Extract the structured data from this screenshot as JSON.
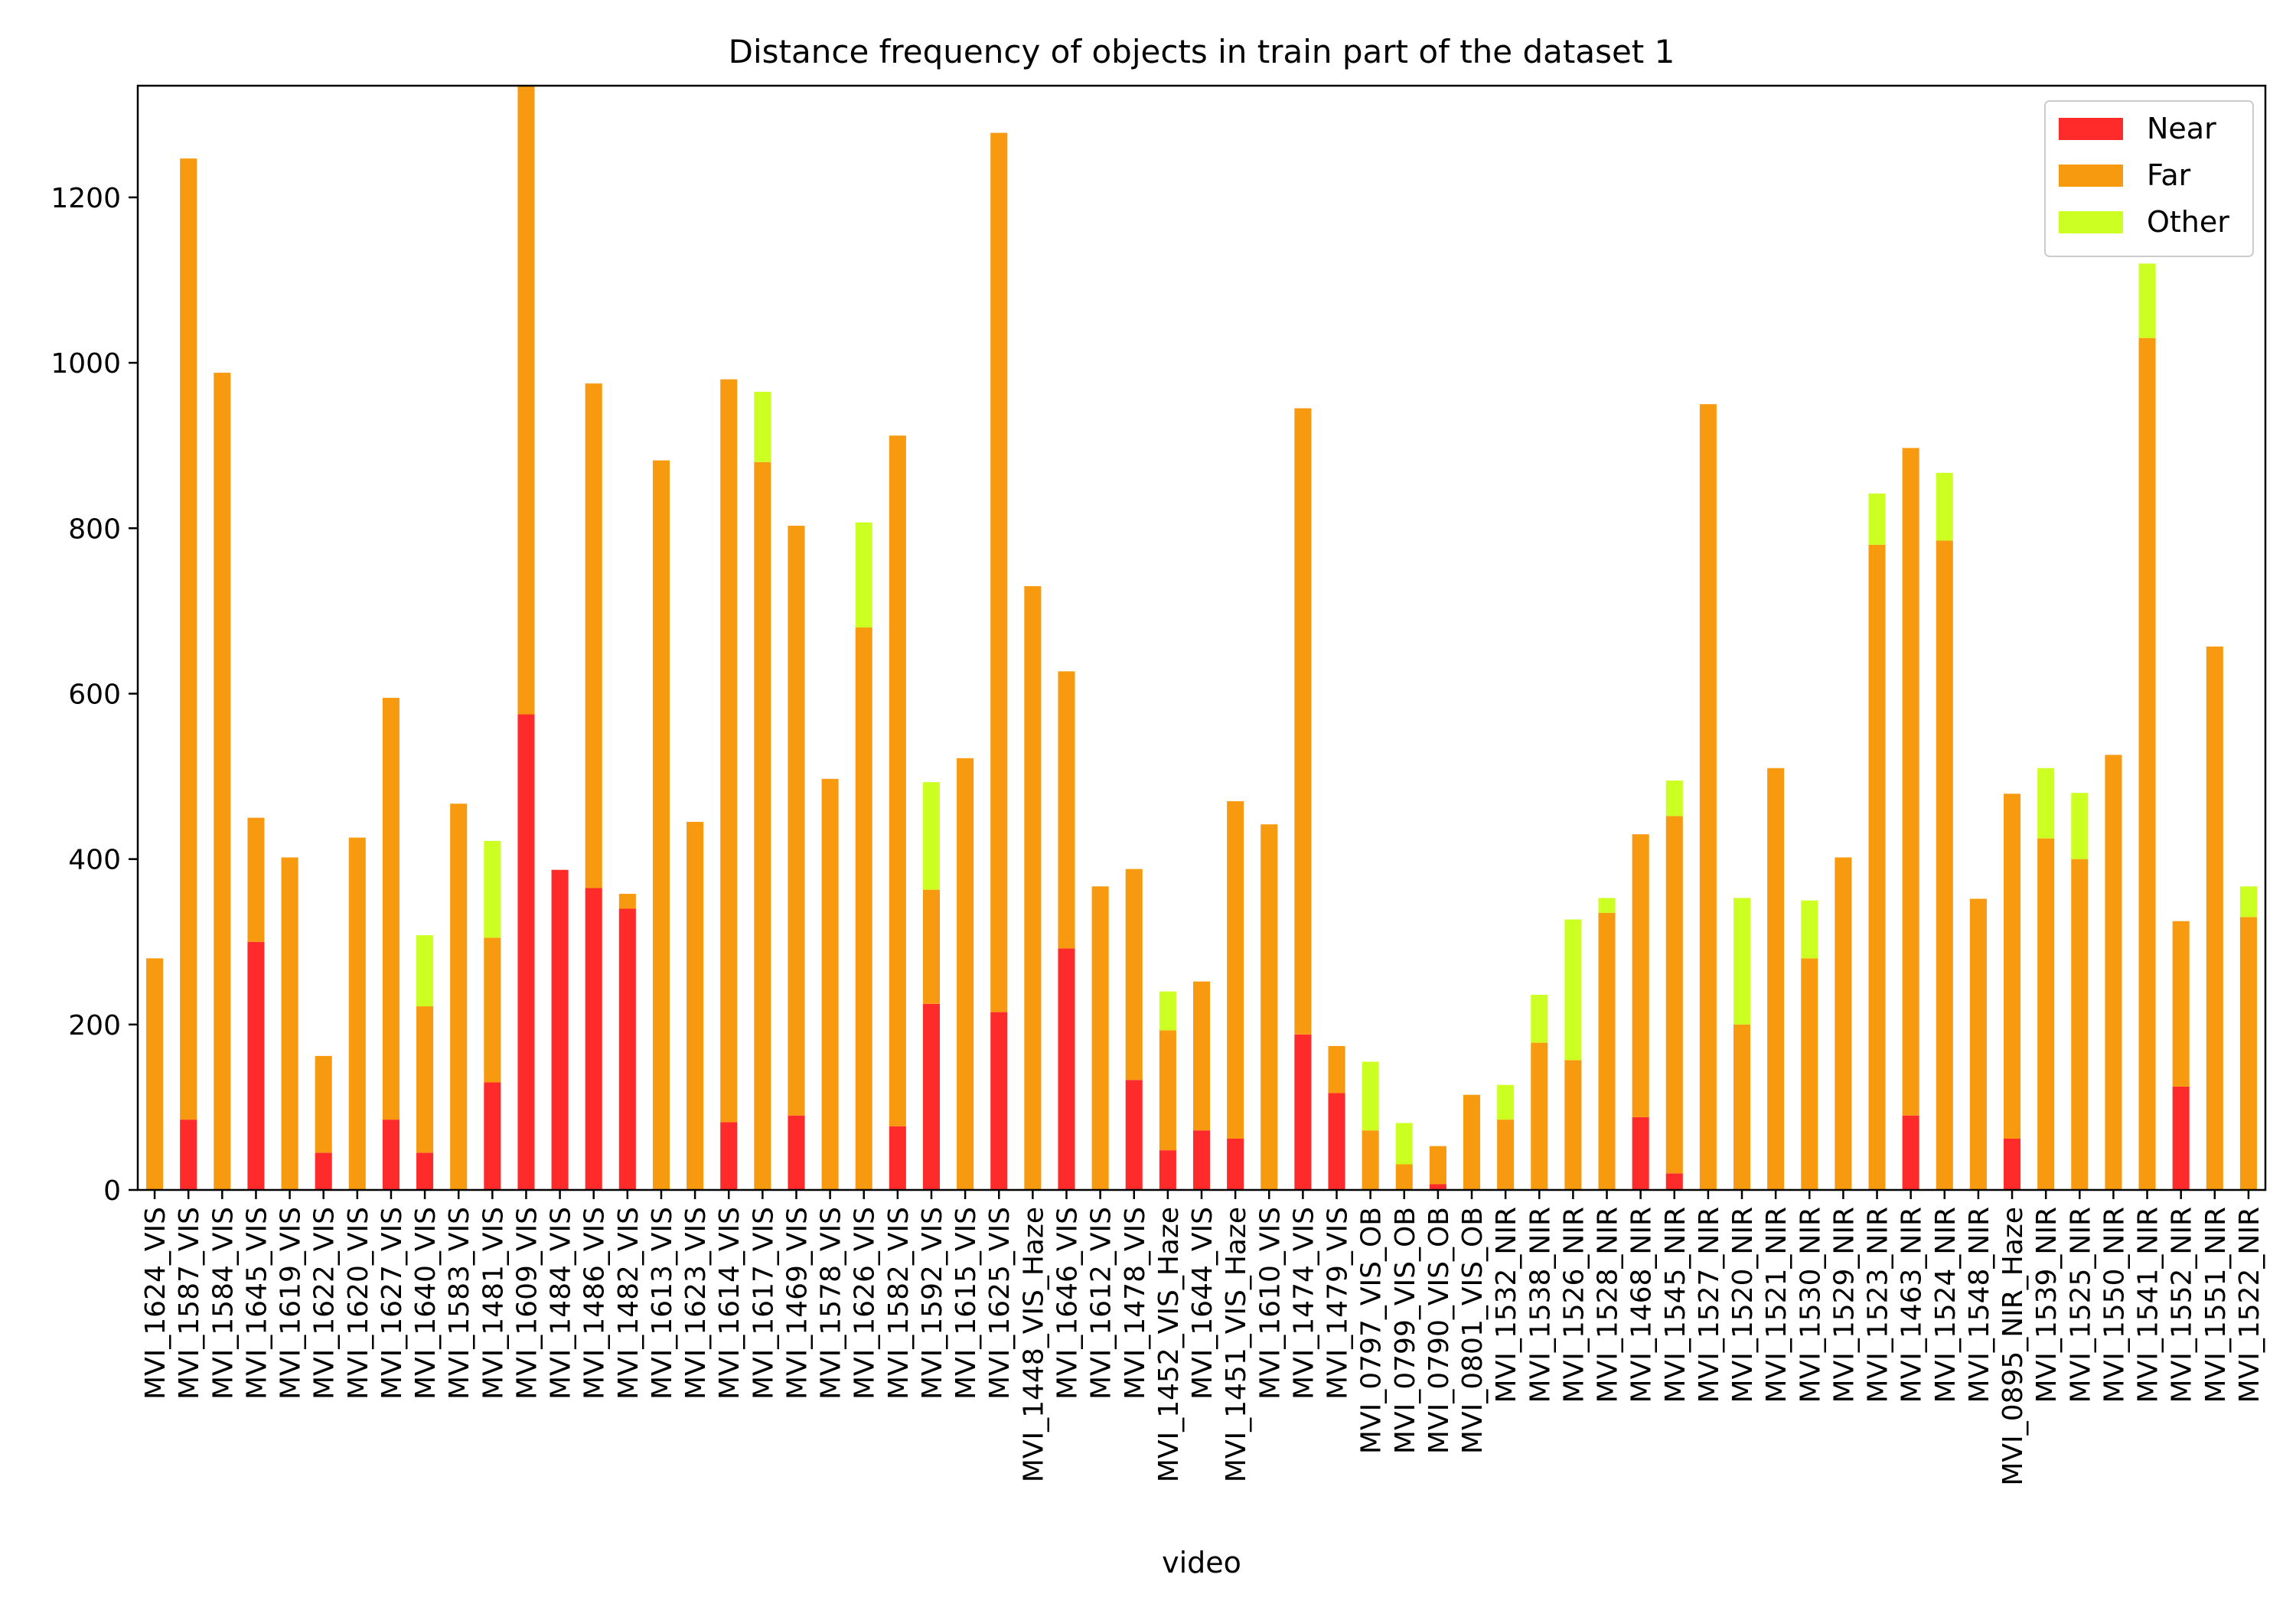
{
  "chart_data": {
    "type": "bar",
    "stacked": true,
    "title": "Distance frequency of objects in train part of the dataset 1",
    "xlabel": "video",
    "ylabel": "",
    "ylim": [
      0,
      1335
    ],
    "yticks": [
      0,
      200,
      400,
      600,
      800,
      1000,
      1200
    ],
    "grid": false,
    "legend_position": "top-right",
    "categories": [
      "MVI_1624_VIS",
      "MVI_1587_VIS",
      "MVI_1584_VIS",
      "MVI_1645_VIS",
      "MVI_1619_VIS",
      "MVI_1622_VIS",
      "MVI_1620_VIS",
      "MVI_1627_VIS",
      "MVI_1640_VIS",
      "MVI_1583_VIS",
      "MVI_1481_VIS",
      "MVI_1609_VIS",
      "MVI_1484_VIS",
      "MVI_1486_VIS",
      "MVI_1482_VIS",
      "MVI_1613_VIS",
      "MVI_1623_VIS",
      "MVI_1614_VIS",
      "MVI_1617_VIS",
      "MVI_1469_VIS",
      "MVI_1578_VIS",
      "MVI_1626_VIS",
      "MVI_1582_VIS",
      "MVI_1592_VIS",
      "MVI_1615_VIS",
      "MVI_1625_VIS",
      "MVI_1448_VIS_Haze",
      "MVI_1646_VIS",
      "MVI_1612_VIS",
      "MVI_1478_VIS",
      "MVI_1452_VIS_Haze",
      "MVI_1644_VIS",
      "MVI_1451_VIS_Haze",
      "MVI_1610_VIS",
      "MVI_1474_VIS",
      "MVI_1479_VIS",
      "MVI_0797_VIS_OB",
      "MVI_0799_VIS_OB",
      "MVI_0790_VIS_OB",
      "MVI_0801_VIS_OB",
      "MVI_1532_NIR",
      "MVI_1538_NIR",
      "MVI_1526_NIR",
      "MVI_1528_NIR",
      "MVI_1468_NIR",
      "MVI_1545_NIR",
      "MVI_1527_NIR",
      "MVI_1520_NIR",
      "MVI_1521_NIR",
      "MVI_1530_NIR",
      "MVI_1529_NIR",
      "MVI_1523_NIR",
      "MVI_1463_NIR",
      "MVI_1524_NIR",
      "MVI_1548_NIR",
      "MVI_0895_NIR_Haze",
      "MVI_1539_NIR",
      "MVI_1525_NIR",
      "MVI_1550_NIR",
      "MVI_1541_NIR",
      "MVI_1552_NIR",
      "MVI_1551_NIR",
      "MVI_1522_NIR"
    ],
    "series": [
      {
        "name": "Near",
        "color": "#ff2a2a",
        "values": [
          0,
          85,
          0,
          300,
          0,
          45,
          0,
          85,
          45,
          0,
          130,
          575,
          387,
          365,
          340,
          0,
          0,
          82,
          0,
          90,
          0,
          0,
          77,
          225,
          0,
          215,
          0,
          292,
          0,
          133,
          48,
          72,
          62,
          0,
          188,
          117,
          0,
          0,
          7,
          0,
          0,
          0,
          0,
          0,
          88,
          20,
          0,
          0,
          0,
          0,
          0,
          0,
          90,
          0,
          0,
          62,
          0,
          0,
          0,
          0,
          125,
          0,
          0
        ]
      },
      {
        "name": "Far",
        "color": "#f89a10",
        "values": [
          280,
          1162,
          988,
          150,
          402,
          117,
          426,
          510,
          177,
          467,
          175,
          760,
          0,
          610,
          18,
          882,
          445,
          898,
          880,
          713,
          497,
          680,
          835,
          138,
          522,
          1063,
          730,
          335,
          367,
          255,
          145,
          180,
          408,
          442,
          757,
          57,
          72,
          31,
          46,
          115,
          85,
          178,
          157,
          335,
          342,
          432,
          950,
          200,
          510,
          280,
          402,
          780,
          807,
          785,
          352,
          417,
          425,
          400,
          526,
          1030,
          200,
          657,
          330
        ]
      },
      {
        "name": "Other",
        "color": "#ccff22",
        "values": [
          0,
          0,
          0,
          0,
          0,
          0,
          0,
          0,
          86,
          0,
          117,
          0,
          0,
          0,
          0,
          0,
          0,
          0,
          85,
          0,
          0,
          127,
          0,
          130,
          0,
          0,
          0,
          0,
          0,
          0,
          47,
          0,
          0,
          0,
          0,
          0,
          83,
          50,
          0,
          0,
          42,
          58,
          170,
          18,
          0,
          43,
          0,
          153,
          0,
          70,
          0,
          62,
          0,
          82,
          0,
          0,
          85,
          80,
          0,
          90,
          0,
          0,
          37
        ]
      }
    ]
  }
}
